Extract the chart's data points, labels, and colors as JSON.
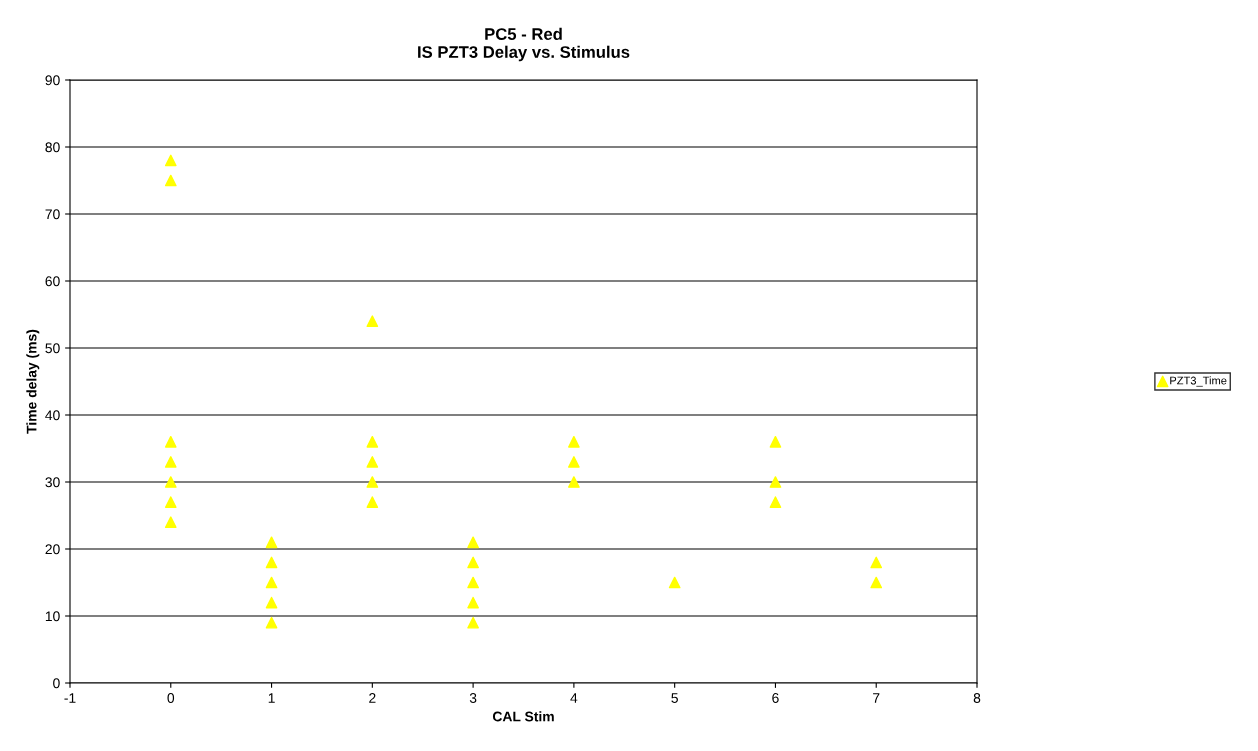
{
  "chart_data": {
    "type": "scatter",
    "title": "PC5 - Red\nIS PZT3 Delay vs. Stimulus",
    "xlabel": "CAL Stim",
    "ylabel": "Time delay (ms)",
    "series": [
      {
        "name": "PZT3_Time",
        "color": "#ffff00",
        "x": [
          0,
          0,
          0,
          0,
          0,
          0,
          0,
          1,
          1,
          1,
          1,
          1,
          2,
          2,
          2,
          2,
          2,
          3,
          3,
          3,
          3,
          3,
          4,
          4,
          4,
          5,
          6,
          6,
          6,
          7,
          7
        ],
        "values": [
          78,
          75,
          36,
          33,
          30,
          27,
          24,
          21,
          18,
          15,
          12,
          9,
          54,
          36,
          33,
          30,
          27,
          21,
          18,
          15,
          12,
          9,
          36,
          33,
          30,
          15,
          36,
          30,
          27,
          18,
          15
        ]
      }
    ],
    "xlim": [
      -1,
      8
    ],
    "xticks": [
      -1,
      0,
      1,
      2,
      3,
      4,
      5,
      6,
      7,
      8
    ],
    "ylim": [
      0,
      90
    ],
    "yticks": [
      0,
      10,
      20,
      30,
      40,
      50,
      60,
      70,
      80,
      90
    ],
    "grid": "y",
    "legend": "right",
    "marker": "triangle"
  }
}
